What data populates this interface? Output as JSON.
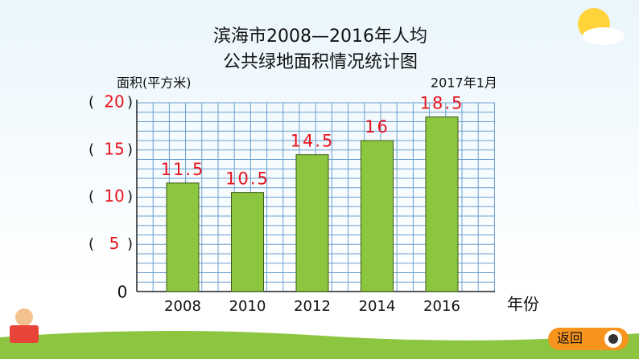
{
  "chart_data": {
    "type": "bar",
    "title": [
      "滨海市2008—2016年人均",
      "公共绿地面积情况统计图"
    ],
    "y_label": "面积(平方米)",
    "date": "2017年1月",
    "x_label": "年份",
    "categories": [
      "2008",
      "2010",
      "2012",
      "2014",
      "2016"
    ],
    "values": [
      11.5,
      10.5,
      14.5,
      16,
      18.5
    ],
    "value_labels": [
      "11.5",
      "10.5",
      "14.5",
      "16",
      "18.5"
    ],
    "color": "#8cc63f",
    "ylim": [
      0,
      20
    ],
    "yticks": [
      0,
      5,
      10,
      15,
      20
    ],
    "minor_yticks": [
      0,
      1,
      2,
      3,
      4,
      5,
      6,
      7,
      8,
      9,
      10,
      11,
      12,
      13,
      14,
      15,
      16,
      17,
      18,
      19,
      20
    ],
    "tick_brackets": [
      "(",
      ")"
    ],
    "grid": true
  },
  "button": {
    "label": "返回"
  }
}
